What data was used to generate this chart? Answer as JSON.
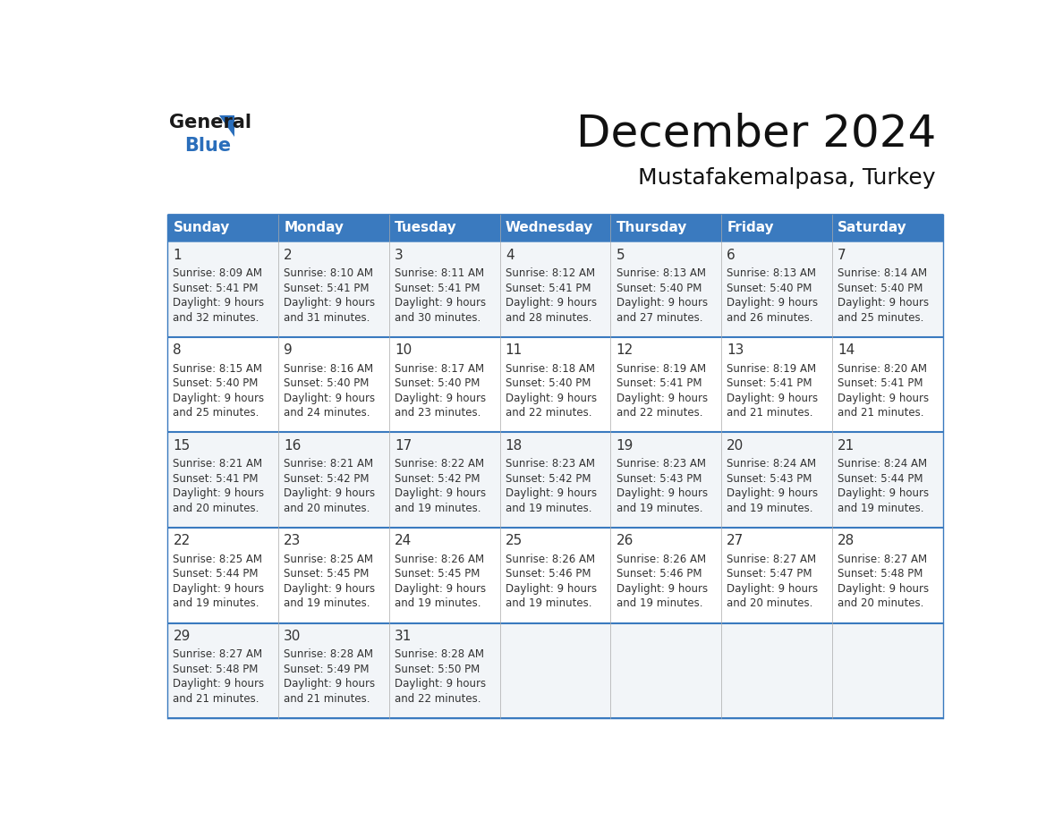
{
  "title": "December 2024",
  "subtitle": "Mustafakemalpasa, Turkey",
  "header_color": "#3a7abf",
  "header_text_color": "#ffffff",
  "day_names": [
    "Sunday",
    "Monday",
    "Tuesday",
    "Wednesday",
    "Thursday",
    "Friday",
    "Saturday"
  ],
  "grid_line_color": "#3a7abf",
  "row0_bg": "#f2f5f8",
  "row1_bg": "#ffffff",
  "text_color": "#333333",
  "days": [
    {
      "day": 1,
      "col": 0,
      "row": 0,
      "sunrise": "8:09 AM",
      "sunset": "5:41 PM",
      "daylight": "9 hours and 32 minutes."
    },
    {
      "day": 2,
      "col": 1,
      "row": 0,
      "sunrise": "8:10 AM",
      "sunset": "5:41 PM",
      "daylight": "9 hours and 31 minutes."
    },
    {
      "day": 3,
      "col": 2,
      "row": 0,
      "sunrise": "8:11 AM",
      "sunset": "5:41 PM",
      "daylight": "9 hours and 30 minutes."
    },
    {
      "day": 4,
      "col": 3,
      "row": 0,
      "sunrise": "8:12 AM",
      "sunset": "5:41 PM",
      "daylight": "9 hours and 28 minutes."
    },
    {
      "day": 5,
      "col": 4,
      "row": 0,
      "sunrise": "8:13 AM",
      "sunset": "5:40 PM",
      "daylight": "9 hours and 27 minutes."
    },
    {
      "day": 6,
      "col": 5,
      "row": 0,
      "sunrise": "8:13 AM",
      "sunset": "5:40 PM",
      "daylight": "9 hours and 26 minutes."
    },
    {
      "day": 7,
      "col": 6,
      "row": 0,
      "sunrise": "8:14 AM",
      "sunset": "5:40 PM",
      "daylight": "9 hours and 25 minutes."
    },
    {
      "day": 8,
      "col": 0,
      "row": 1,
      "sunrise": "8:15 AM",
      "sunset": "5:40 PM",
      "daylight": "9 hours and 25 minutes."
    },
    {
      "day": 9,
      "col": 1,
      "row": 1,
      "sunrise": "8:16 AM",
      "sunset": "5:40 PM",
      "daylight": "9 hours and 24 minutes."
    },
    {
      "day": 10,
      "col": 2,
      "row": 1,
      "sunrise": "8:17 AM",
      "sunset": "5:40 PM",
      "daylight": "9 hours and 23 minutes."
    },
    {
      "day": 11,
      "col": 3,
      "row": 1,
      "sunrise": "8:18 AM",
      "sunset": "5:40 PM",
      "daylight": "9 hours and 22 minutes."
    },
    {
      "day": 12,
      "col": 4,
      "row": 1,
      "sunrise": "8:19 AM",
      "sunset": "5:41 PM",
      "daylight": "9 hours and 22 minutes."
    },
    {
      "day": 13,
      "col": 5,
      "row": 1,
      "sunrise": "8:19 AM",
      "sunset": "5:41 PM",
      "daylight": "9 hours and 21 minutes."
    },
    {
      "day": 14,
      "col": 6,
      "row": 1,
      "sunrise": "8:20 AM",
      "sunset": "5:41 PM",
      "daylight": "9 hours and 21 minutes."
    },
    {
      "day": 15,
      "col": 0,
      "row": 2,
      "sunrise": "8:21 AM",
      "sunset": "5:41 PM",
      "daylight": "9 hours and 20 minutes."
    },
    {
      "day": 16,
      "col": 1,
      "row": 2,
      "sunrise": "8:21 AM",
      "sunset": "5:42 PM",
      "daylight": "9 hours and 20 minutes."
    },
    {
      "day": 17,
      "col": 2,
      "row": 2,
      "sunrise": "8:22 AM",
      "sunset": "5:42 PM",
      "daylight": "9 hours and 19 minutes."
    },
    {
      "day": 18,
      "col": 3,
      "row": 2,
      "sunrise": "8:23 AM",
      "sunset": "5:42 PM",
      "daylight": "9 hours and 19 minutes."
    },
    {
      "day": 19,
      "col": 4,
      "row": 2,
      "sunrise": "8:23 AM",
      "sunset": "5:43 PM",
      "daylight": "9 hours and 19 minutes."
    },
    {
      "day": 20,
      "col": 5,
      "row": 2,
      "sunrise": "8:24 AM",
      "sunset": "5:43 PM",
      "daylight": "9 hours and 19 minutes."
    },
    {
      "day": 21,
      "col": 6,
      "row": 2,
      "sunrise": "8:24 AM",
      "sunset": "5:44 PM",
      "daylight": "9 hours and 19 minutes."
    },
    {
      "day": 22,
      "col": 0,
      "row": 3,
      "sunrise": "8:25 AM",
      "sunset": "5:44 PM",
      "daylight": "9 hours and 19 minutes."
    },
    {
      "day": 23,
      "col": 1,
      "row": 3,
      "sunrise": "8:25 AM",
      "sunset": "5:45 PM",
      "daylight": "9 hours and 19 minutes."
    },
    {
      "day": 24,
      "col": 2,
      "row": 3,
      "sunrise": "8:26 AM",
      "sunset": "5:45 PM",
      "daylight": "9 hours and 19 minutes."
    },
    {
      "day": 25,
      "col": 3,
      "row": 3,
      "sunrise": "8:26 AM",
      "sunset": "5:46 PM",
      "daylight": "9 hours and 19 minutes."
    },
    {
      "day": 26,
      "col": 4,
      "row": 3,
      "sunrise": "8:26 AM",
      "sunset": "5:46 PM",
      "daylight": "9 hours and 19 minutes."
    },
    {
      "day": 27,
      "col": 5,
      "row": 3,
      "sunrise": "8:27 AM",
      "sunset": "5:47 PM",
      "daylight": "9 hours and 20 minutes."
    },
    {
      "day": 28,
      "col": 6,
      "row": 3,
      "sunrise": "8:27 AM",
      "sunset": "5:48 PM",
      "daylight": "9 hours and 20 minutes."
    },
    {
      "day": 29,
      "col": 0,
      "row": 4,
      "sunrise": "8:27 AM",
      "sunset": "5:48 PM",
      "daylight": "9 hours and 21 minutes."
    },
    {
      "day": 30,
      "col": 1,
      "row": 4,
      "sunrise": "8:28 AM",
      "sunset": "5:49 PM",
      "daylight": "9 hours and 21 minutes."
    },
    {
      "day": 31,
      "col": 2,
      "row": 4,
      "sunrise": "8:28 AM",
      "sunset": "5:50 PM",
      "daylight": "9 hours and 22 minutes."
    }
  ],
  "logo_color_general": "#1a1a1a",
  "logo_color_blue": "#2a6ebb",
  "logo_triangle_color": "#2a6ebb",
  "title_fontsize": 36,
  "subtitle_fontsize": 18,
  "header_fontsize": 11,
  "day_num_fontsize": 11,
  "cell_text_fontsize": 8.5
}
